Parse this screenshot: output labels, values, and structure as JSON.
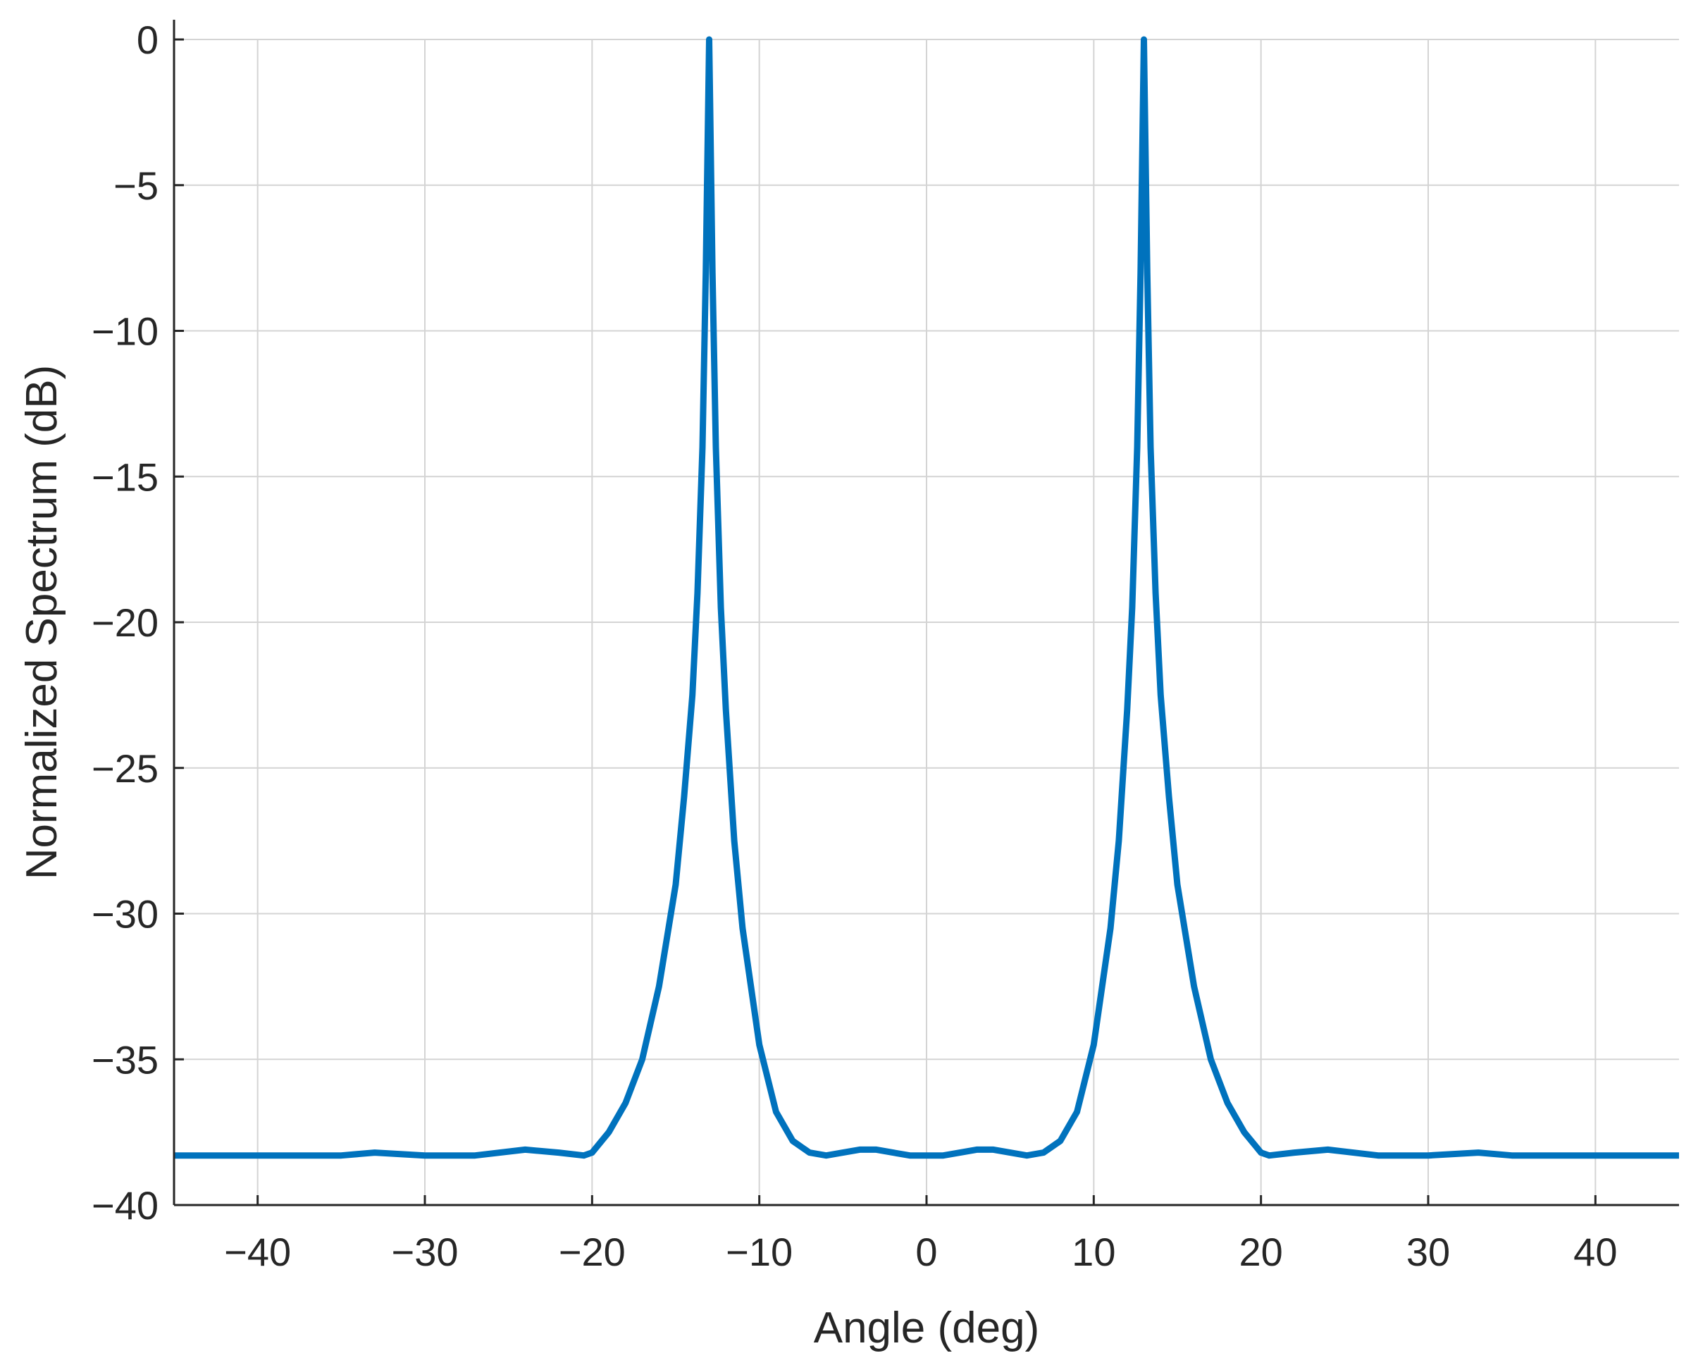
{
  "chart_data": {
    "type": "line",
    "title": "",
    "xlabel": "Angle (deg)",
    "ylabel": "Normalized Spectrum (dB)",
    "xlim": [
      -45,
      45
    ],
    "ylim": [
      -40,
      0
    ],
    "grid": true,
    "legend": "none",
    "x_ticks": [
      -40,
      -30,
      -20,
      -10,
      0,
      10,
      20,
      30,
      40
    ],
    "x_tick_labels": [
      "−40",
      "−30",
      "−20",
      "−10",
      "0",
      "10",
      "20",
      "30",
      "40"
    ],
    "y_ticks": [
      0,
      -5,
      -10,
      -15,
      -20,
      -25,
      -30,
      -35,
      -40
    ],
    "y_tick_labels": [
      "0",
      "−5",
      "−10",
      "−15",
      "−20",
      "−25",
      "−30",
      "−35",
      "−40"
    ],
    "series": [
      {
        "color": "#0072BD",
        "x": [
          -45,
          -40,
          -35,
          -33,
          -30,
          -27,
          -24,
          -22,
          -20.5,
          -20,
          -19,
          -18,
          -17,
          -16,
          -15,
          -14.5,
          -14,
          -13.7,
          -13.4,
          -13.2,
          -13.05,
          -13,
          -12.95,
          -12.8,
          -12.6,
          -12.3,
          -12,
          -11.5,
          -11,
          -10,
          -9,
          -8,
          -7,
          -6,
          -5,
          -4,
          -3,
          -2,
          -1,
          0,
          1,
          2,
          3,
          4,
          5,
          6,
          7,
          8,
          9,
          10,
          11,
          11.5,
          12,
          12.3,
          12.6,
          12.8,
          12.95,
          13,
          13.05,
          13.2,
          13.4,
          13.7,
          14,
          14.5,
          15,
          16,
          17,
          18,
          19,
          20,
          20.5,
          22,
          24,
          27,
          30,
          33,
          35,
          40,
          45
        ],
        "y": [
          -38.3,
          -38.3,
          -38.3,
          -38.2,
          -38.3,
          -38.3,
          -38.1,
          -38.2,
          -38.3,
          -38.2,
          -37.5,
          -36.5,
          -35.0,
          -32.5,
          -29.0,
          -26.0,
          -22.5,
          -19.0,
          -14.0,
          -8.0,
          -2.0,
          0,
          -2.0,
          -8.0,
          -14.0,
          -19.5,
          -23.0,
          -27.5,
          -30.5,
          -34.5,
          -36.8,
          -37.8,
          -38.2,
          -38.3,
          -38.2,
          -38.1,
          -38.1,
          -38.2,
          -38.3,
          -38.3,
          -38.3,
          -38.2,
          -38.1,
          -38.1,
          -38.2,
          -38.3,
          -38.2,
          -37.8,
          -36.8,
          -34.5,
          -30.5,
          -27.5,
          -23.0,
          -19.5,
          -14.0,
          -8.0,
          -2.0,
          0,
          -2.0,
          -8.0,
          -14.0,
          -19.0,
          -22.5,
          -26.0,
          -29.0,
          -32.5,
          -35.0,
          -36.5,
          -37.5,
          -38.2,
          -38.3,
          -38.2,
          -38.1,
          -38.3,
          -38.3,
          -38.2,
          -38.3,
          -38.3,
          -38.3
        ]
      }
    ]
  }
}
